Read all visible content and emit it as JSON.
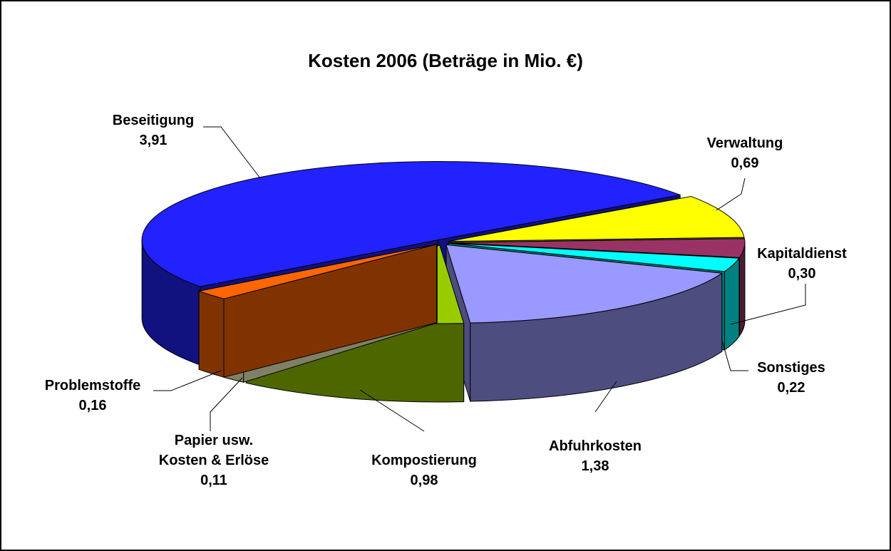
{
  "chart_data": {
    "type": "pie",
    "title": "Kosten 2006 (Beträge in Mio. €)",
    "categories": [
      "Beseitigung",
      "Verwaltung",
      "Kapitaldienst",
      "Sonstiges",
      "Abfuhrkosten",
      "Kompostierung",
      "Papier usw.\nKosten & Erlöse",
      "Problemstoffe"
    ],
    "values": [
      3.91,
      0.69,
      0.3,
      0.22,
      1.38,
      0.98,
      0.11,
      0.16
    ],
    "value_labels": [
      "3,91",
      "0,69",
      "0,30",
      "0,22",
      "1,38",
      "0,98",
      "0,11",
      "0,16"
    ],
    "colors": [
      "#2222ff",
      "#ffff00",
      "#993366",
      "#00ffff",
      "#9999ff",
      "#99cc00",
      "#ffffcc",
      "#ff6600"
    ]
  }
}
